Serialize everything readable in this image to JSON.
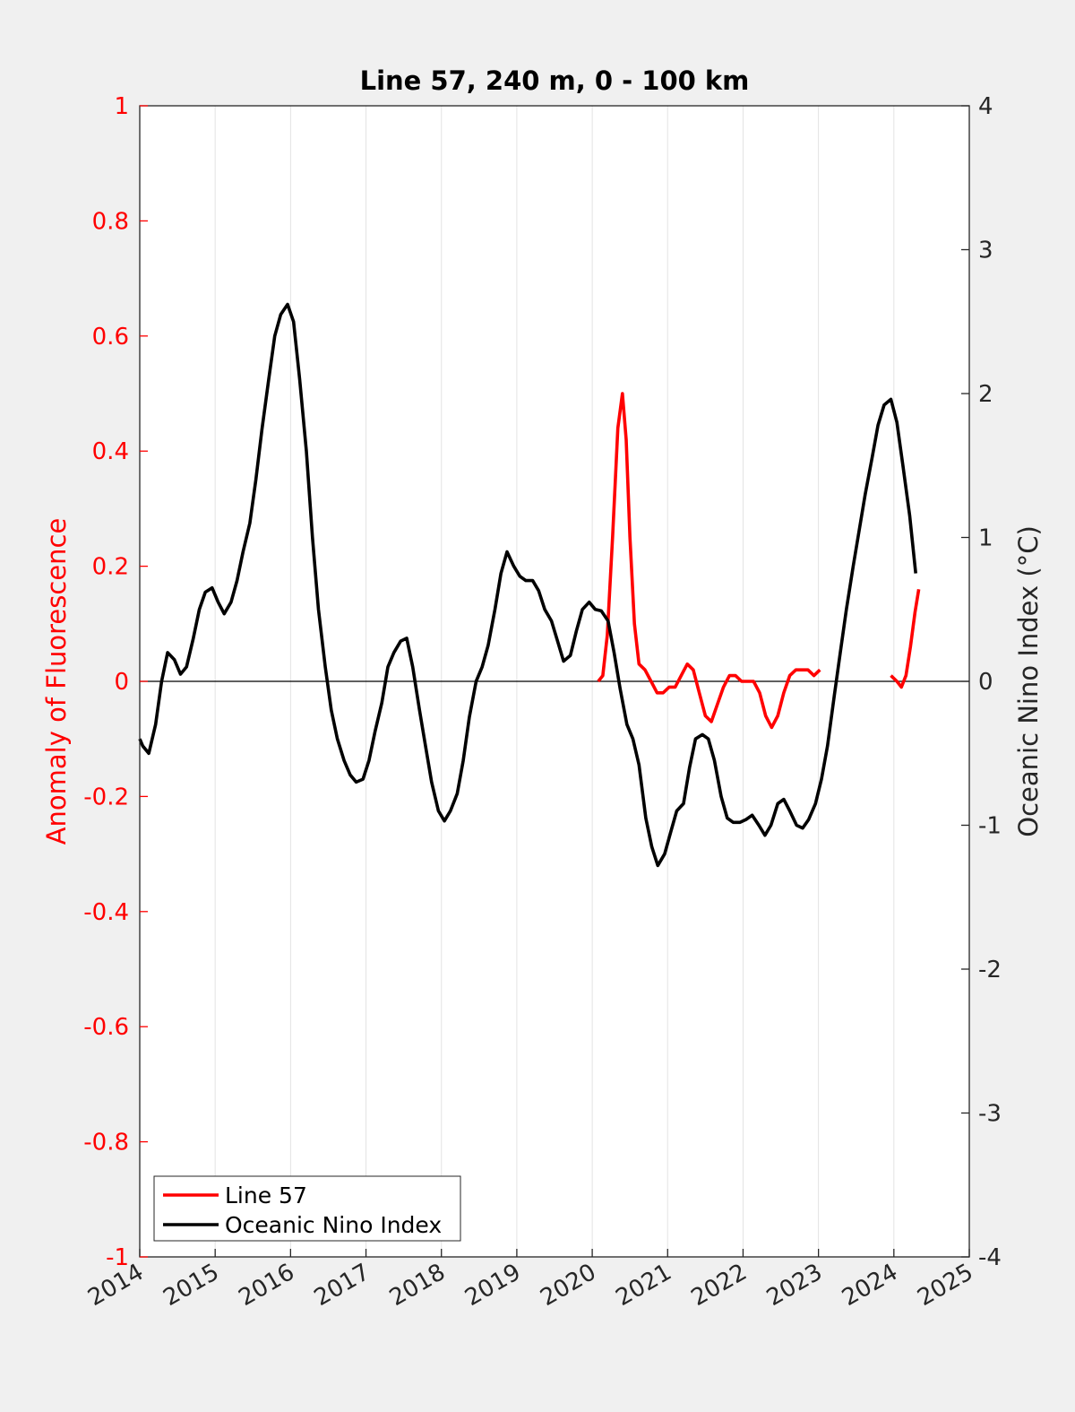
{
  "chart_data": {
    "type": "line",
    "title": "Line 57, 240 m, 0 - 100 km",
    "xlabel": "",
    "ylabel_left": "Anomaly of Fluorescence",
    "ylabel_right": "Oceanic Nino Index (°C)",
    "xlim": [
      2014,
      2025
    ],
    "ylim_left": [
      -1,
      1
    ],
    "ylim_right": [
      -4,
      4
    ],
    "x_ticks": [
      "2014",
      "2015",
      "2016",
      "2017",
      "2018",
      "2019",
      "2020",
      "2021",
      "2022",
      "2023",
      "2024",
      "2025"
    ],
    "y_ticks_left": [
      "1",
      "0.8",
      "0.6",
      "0.4",
      "0.2",
      "0",
      "-0.2",
      "-0.4",
      "-0.6",
      "-0.8",
      "-1"
    ],
    "y_ticks_right": [
      "4",
      "3",
      "2",
      "1",
      "0",
      "-1",
      "-2",
      "-3",
      "-4"
    ],
    "grid": "vertical",
    "legend_position": "bottom-left",
    "colors": {
      "left_axis": "#ff0000",
      "line57": "#ff0000",
      "oni": "#000000"
    },
    "series": [
      {
        "name": "Line 57",
        "axis": "left",
        "segments": [
          [
            [
              2020.08,
              0.0
            ],
            [
              2020.14,
              0.01
            ],
            [
              2020.2,
              0.08
            ],
            [
              2020.27,
              0.25
            ],
            [
              2020.34,
              0.44
            ],
            [
              2020.4,
              0.5
            ],
            [
              2020.45,
              0.42
            ],
            [
              2020.5,
              0.25
            ],
            [
              2020.56,
              0.1
            ],
            [
              2020.62,
              0.03
            ],
            [
              2020.7,
              0.02
            ],
            [
              2020.78,
              0.0
            ],
            [
              2020.86,
              -0.02
            ],
            [
              2020.94,
              -0.02
            ],
            [
              2021.02,
              -0.01
            ],
            [
              2021.1,
              -0.01
            ],
            [
              2021.18,
              0.01
            ],
            [
              2021.26,
              0.03
            ],
            [
              2021.34,
              0.02
            ],
            [
              2021.42,
              -0.02
            ],
            [
              2021.5,
              -0.06
            ],
            [
              2021.58,
              -0.07
            ],
            [
              2021.66,
              -0.04
            ],
            [
              2021.74,
              -0.01
            ],
            [
              2021.82,
              0.01
            ],
            [
              2021.9,
              0.01
            ],
            [
              2021.98,
              0.0
            ],
            [
              2022.06,
              0.0
            ],
            [
              2022.14,
              0.0
            ],
            [
              2022.22,
              -0.02
            ],
            [
              2022.3,
              -0.06
            ],
            [
              2022.38,
              -0.08
            ],
            [
              2022.46,
              -0.06
            ],
            [
              2022.54,
              -0.02
            ],
            [
              2022.62,
              0.01
            ],
            [
              2022.7,
              0.02
            ],
            [
              2022.78,
              0.02
            ],
            [
              2022.86,
              0.02
            ],
            [
              2022.94,
              0.01
            ],
            [
              2023.02,
              0.02
            ]
          ],
          [
            [
              2023.96,
              0.01
            ],
            [
              2024.04,
              0.0
            ],
            [
              2024.1,
              -0.01
            ],
            [
              2024.16,
              0.01
            ],
            [
              2024.22,
              0.06
            ],
            [
              2024.28,
              0.12
            ],
            [
              2024.33,
              0.16
            ]
          ]
        ]
      },
      {
        "name": "Oceanic Nino Index",
        "axis": "right",
        "points": [
          [
            2014.0,
            -0.4
          ],
          [
            2014.04,
            -0.45
          ],
          [
            2014.12,
            -0.5
          ],
          [
            2014.21,
            -0.3
          ],
          [
            2014.29,
            0.0
          ],
          [
            2014.37,
            0.2
          ],
          [
            2014.46,
            0.15
          ],
          [
            2014.54,
            0.05
          ],
          [
            2014.62,
            0.1
          ],
          [
            2014.71,
            0.3
          ],
          [
            2014.79,
            0.5
          ],
          [
            2014.87,
            0.62
          ],
          [
            2014.96,
            0.65
          ],
          [
            2015.04,
            0.55
          ],
          [
            2015.12,
            0.47
          ],
          [
            2015.21,
            0.55
          ],
          [
            2015.29,
            0.7
          ],
          [
            2015.37,
            0.9
          ],
          [
            2015.46,
            1.1
          ],
          [
            2015.54,
            1.4
          ],
          [
            2015.62,
            1.75
          ],
          [
            2015.71,
            2.1
          ],
          [
            2015.79,
            2.4
          ],
          [
            2015.87,
            2.55
          ],
          [
            2015.96,
            2.62
          ],
          [
            2016.04,
            2.5
          ],
          [
            2016.12,
            2.1
          ],
          [
            2016.21,
            1.6
          ],
          [
            2016.29,
            1.0
          ],
          [
            2016.37,
            0.5
          ],
          [
            2016.46,
            0.1
          ],
          [
            2016.54,
            -0.2
          ],
          [
            2016.62,
            -0.4
          ],
          [
            2016.71,
            -0.55
          ],
          [
            2016.79,
            -0.65
          ],
          [
            2016.87,
            -0.7
          ],
          [
            2016.96,
            -0.68
          ],
          [
            2017.04,
            -0.55
          ],
          [
            2017.12,
            -0.35
          ],
          [
            2017.21,
            -0.15
          ],
          [
            2017.29,
            0.1
          ],
          [
            2017.37,
            0.2
          ],
          [
            2017.46,
            0.28
          ],
          [
            2017.54,
            0.3
          ],
          [
            2017.62,
            0.1
          ],
          [
            2017.71,
            -0.2
          ],
          [
            2017.79,
            -0.45
          ],
          [
            2017.87,
            -0.7
          ],
          [
            2017.96,
            -0.9
          ],
          [
            2018.04,
            -0.97
          ],
          [
            2018.12,
            -0.9
          ],
          [
            2018.21,
            -0.78
          ],
          [
            2018.29,
            -0.55
          ],
          [
            2018.37,
            -0.25
          ],
          [
            2018.46,
            0.0
          ],
          [
            2018.54,
            0.1
          ],
          [
            2018.62,
            0.25
          ],
          [
            2018.71,
            0.5
          ],
          [
            2018.79,
            0.75
          ],
          [
            2018.87,
            0.9
          ],
          [
            2018.96,
            0.8
          ],
          [
            2019.04,
            0.73
          ],
          [
            2019.12,
            0.7
          ],
          [
            2019.21,
            0.7
          ],
          [
            2019.29,
            0.63
          ],
          [
            2019.37,
            0.5
          ],
          [
            2019.46,
            0.42
          ],
          [
            2019.54,
            0.28
          ],
          [
            2019.62,
            0.14
          ],
          [
            2019.71,
            0.18
          ],
          [
            2019.79,
            0.35
          ],
          [
            2019.87,
            0.5
          ],
          [
            2019.96,
            0.55
          ],
          [
            2020.04,
            0.5
          ],
          [
            2020.12,
            0.49
          ],
          [
            2020.21,
            0.42
          ],
          [
            2020.29,
            0.2
          ],
          [
            2020.37,
            -0.05
          ],
          [
            2020.46,
            -0.3
          ],
          [
            2020.54,
            -0.4
          ],
          [
            2020.62,
            -0.58
          ],
          [
            2020.71,
            -0.95
          ],
          [
            2020.79,
            -1.15
          ],
          [
            2020.87,
            -1.28
          ],
          [
            2020.96,
            -1.2
          ],
          [
            2021.04,
            -1.05
          ],
          [
            2021.12,
            -0.9
          ],
          [
            2021.21,
            -0.85
          ],
          [
            2021.29,
            -0.6
          ],
          [
            2021.37,
            -0.4
          ],
          [
            2021.46,
            -0.37
          ],
          [
            2021.54,
            -0.4
          ],
          [
            2021.62,
            -0.55
          ],
          [
            2021.71,
            -0.8
          ],
          [
            2021.79,
            -0.95
          ],
          [
            2021.87,
            -0.98
          ],
          [
            2021.96,
            -0.98
          ],
          [
            2022.04,
            -0.96
          ],
          [
            2022.12,
            -0.93
          ],
          [
            2022.21,
            -1.0
          ],
          [
            2022.29,
            -1.07
          ],
          [
            2022.37,
            -1.0
          ],
          [
            2022.46,
            -0.85
          ],
          [
            2022.54,
            -0.82
          ],
          [
            2022.62,
            -0.9
          ],
          [
            2022.71,
            -1.0
          ],
          [
            2022.79,
            -1.02
          ],
          [
            2022.87,
            -0.96
          ],
          [
            2022.96,
            -0.85
          ],
          [
            2023.04,
            -0.68
          ],
          [
            2023.12,
            -0.45
          ],
          [
            2023.21,
            -0.1
          ],
          [
            2023.29,
            0.2
          ],
          [
            2023.37,
            0.5
          ],
          [
            2023.46,
            0.8
          ],
          [
            2023.54,
            1.05
          ],
          [
            2023.62,
            1.3
          ],
          [
            2023.71,
            1.55
          ],
          [
            2023.79,
            1.78
          ],
          [
            2023.87,
            1.92
          ],
          [
            2023.96,
            1.96
          ],
          [
            2024.04,
            1.8
          ],
          [
            2024.12,
            1.5
          ],
          [
            2024.21,
            1.15
          ],
          [
            2024.29,
            0.75
          ]
        ]
      }
    ]
  }
}
